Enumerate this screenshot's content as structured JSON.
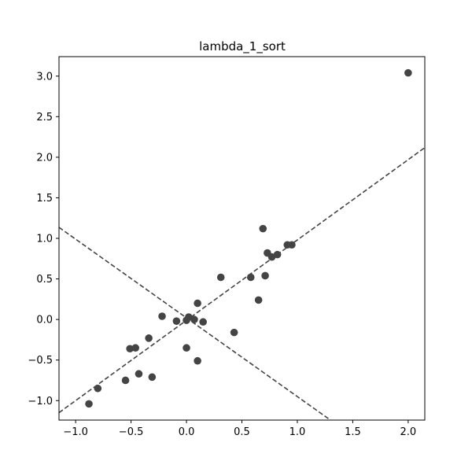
{
  "chart_data": {
    "type": "scatter",
    "title": "lambda_1_sort",
    "xlabel": "",
    "ylabel": "",
    "xlim": [
      -1.15,
      2.15
    ],
    "ylim": [
      -1.24,
      3.24
    ],
    "xticks": [
      -1.0,
      -0.5,
      0.0,
      0.5,
      1.0,
      1.5,
      2.0
    ],
    "xtick_labels": [
      "−1.0",
      "−0.5",
      "0.0",
      "0.5",
      "1.0",
      "1.5",
      "2.0"
    ],
    "yticks": [
      -1.0,
      -0.5,
      0.0,
      0.5,
      1.0,
      1.5,
      2.0,
      2.5,
      3.0
    ],
    "ytick_labels": [
      "−1.0",
      "−0.5",
      "0.0",
      "0.5",
      "1.0",
      "1.5",
      "2.0",
      "2.5",
      "3.0"
    ],
    "grid": false,
    "marker_color": "#444444",
    "points": [
      {
        "x": -0.88,
        "y": -1.04
      },
      {
        "x": -0.8,
        "y": -0.85
      },
      {
        "x": -0.55,
        "y": -0.75
      },
      {
        "x": -0.51,
        "y": -0.36
      },
      {
        "x": -0.46,
        "y": -0.35
      },
      {
        "x": -0.43,
        "y": -0.67
      },
      {
        "x": -0.34,
        "y": -0.23
      },
      {
        "x": -0.31,
        "y": -0.71
      },
      {
        "x": -0.22,
        "y": 0.04
      },
      {
        "x": -0.09,
        "y": -0.02
      },
      {
        "x": 0.0,
        "y": -0.01
      },
      {
        "x": 0.02,
        "y": 0.03
      },
      {
        "x": 0.07,
        "y": 0.0
      },
      {
        "x": 0.1,
        "y": 0.2
      },
      {
        "x": 0.15,
        "y": -0.03
      },
      {
        "x": 0.0,
        "y": -0.35
      },
      {
        "x": 0.1,
        "y": -0.51
      },
      {
        "x": 0.31,
        "y": 0.52
      },
      {
        "x": 0.43,
        "y": -0.16
      },
      {
        "x": 0.58,
        "y": 0.52
      },
      {
        "x": 0.65,
        "y": 0.24
      },
      {
        "x": 0.69,
        "y": 1.12
      },
      {
        "x": 0.71,
        "y": 0.54
      },
      {
        "x": 0.73,
        "y": 0.82
      },
      {
        "x": 0.77,
        "y": 0.77
      },
      {
        "x": 0.82,
        "y": 0.8
      },
      {
        "x": 0.91,
        "y": 0.92
      },
      {
        "x": 0.95,
        "y": 0.92
      },
      {
        "x": 2.0,
        "y": 3.04
      }
    ],
    "lines": [
      {
        "style": "dashed",
        "color": "#444444",
        "slope": 0.99,
        "intercept": -0.01
      },
      {
        "style": "dashed",
        "color": "#444444",
        "slope": -0.97,
        "intercept": 0.02
      }
    ]
  }
}
